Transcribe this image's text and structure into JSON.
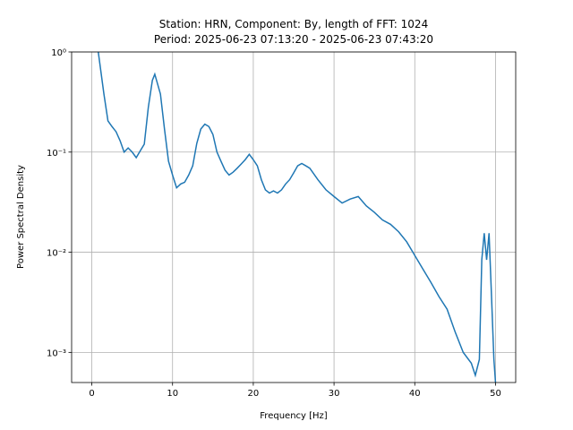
{
  "chart_data": {
    "type": "line",
    "title": "Station: HRN, Component: By, length of FFT: 1024",
    "subtitle": "Period: 2025-06-23 07:13:20 - 2025-06-23 07:43:20",
    "x_label": "Frequency [Hz]",
    "y_label": "Power Spectral Density",
    "log_y": true,
    "grid": true,
    "xlim": [
      -2.5,
      52.5
    ],
    "ylim": [
      0.0005,
      1
    ],
    "xticks": [
      0,
      10,
      20,
      30,
      40,
      50
    ],
    "yticks": [
      {
        "value": 1,
        "label": "10⁰"
      },
      {
        "value": 0.1,
        "label": "10⁻¹"
      },
      {
        "value": 0.01,
        "label": "10⁻²"
      },
      {
        "value": 0.001,
        "label": "10⁻³"
      }
    ],
    "x": [
      0.8,
      1.5,
      2.0,
      2.5,
      3.0,
      3.5,
      4.0,
      4.5,
      5.0,
      5.5,
      6.0,
      6.5,
      7.0,
      7.5,
      7.8,
      8.5,
      9.0,
      9.5,
      10.0,
      10.5,
      11.0,
      11.5,
      12.0,
      12.5,
      13.0,
      13.5,
      14.0,
      14.5,
      15.0,
      15.5,
      16.0,
      16.5,
      17.0,
      17.5,
      18.0,
      18.5,
      19.0,
      19.5,
      20.0,
      20.5,
      21.0,
      21.5,
      22.0,
      22.5,
      23.0,
      23.5,
      24.0,
      24.5,
      25.0,
      25.5,
      26.0,
      26.5,
      27.0,
      28.0,
      29.0,
      30.0,
      31.0,
      32.0,
      33.0,
      34.0,
      35.0,
      36.0,
      37.0,
      38.0,
      39.0,
      40.0,
      41.0,
      42.0,
      43.0,
      44.0,
      45.0,
      46.0,
      47.0,
      47.5,
      48.0,
      48.3,
      48.6,
      48.9,
      49.2,
      49.5,
      49.8,
      50.0
    ],
    "series": [
      {
        "name": "By",
        "color": "#1f77b4",
        "values": [
          1.0,
          0.38,
          0.205,
          0.18,
          0.16,
          0.13,
          0.1,
          0.11,
          0.1,
          0.088,
          0.103,
          0.12,
          0.28,
          0.52,
          0.6,
          0.38,
          0.17,
          0.081,
          0.059,
          0.044,
          0.048,
          0.05,
          0.059,
          0.073,
          0.122,
          0.17,
          0.19,
          0.18,
          0.15,
          0.1,
          0.081,
          0.066,
          0.059,
          0.063,
          0.069,
          0.076,
          0.084,
          0.095,
          0.084,
          0.073,
          0.053,
          0.042,
          0.039,
          0.041,
          0.039,
          0.042,
          0.048,
          0.053,
          0.062,
          0.073,
          0.077,
          0.073,
          0.069,
          0.053,
          0.042,
          0.036,
          0.031,
          0.034,
          0.036,
          0.029,
          0.025,
          0.021,
          0.019,
          0.016,
          0.0127,
          0.0093,
          0.0068,
          0.005,
          0.0036,
          0.0027,
          0.0016,
          0.001,
          0.00078,
          0.00059,
          0.00085,
          0.0084,
          0.0155,
          0.0084,
          0.0155,
          0.0037,
          0.00085,
          0.0005
        ]
      }
    ]
  }
}
